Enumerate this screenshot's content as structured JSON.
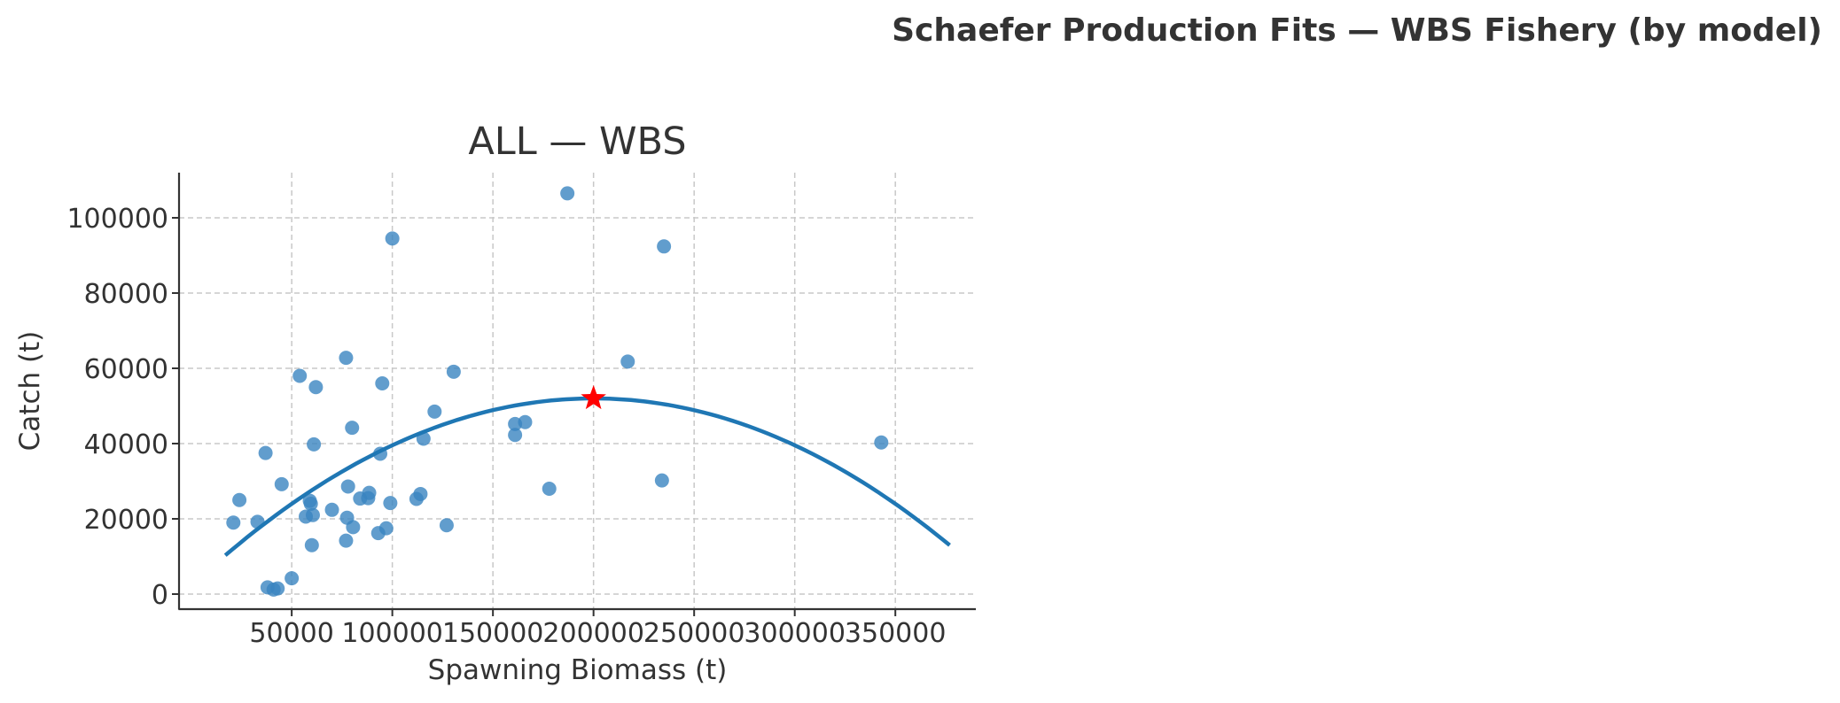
{
  "figure": {
    "title": "Schaefer Production Fits — WBS Fishery (by model)"
  },
  "chart_data": {
    "type": "scatter",
    "title": "ALL — WBS",
    "xlabel": "Spawning Biomass (t)",
    "ylabel": "Catch (t)",
    "xlim": [
      -6000,
      390000
    ],
    "ylim": [
      -4000,
      112000
    ],
    "xticks": [
      50000,
      100000,
      150000,
      200000,
      250000,
      300000,
      350000
    ],
    "yticks": [
      0,
      20000,
      40000,
      60000,
      80000,
      100000
    ],
    "grid": true,
    "colors": {
      "points": "#3a85c0",
      "curve": "#1f77b4",
      "msy_star": "#ff0000",
      "grid": "#c8c8c8",
      "axis": "#333333"
    },
    "series": [
      {
        "kind": "points",
        "points": [
          [
            21000,
            19000
          ],
          [
            24000,
            25000
          ],
          [
            33000,
            19200
          ],
          [
            37000,
            37500
          ],
          [
            38000,
            1800
          ],
          [
            41000,
            1200
          ],
          [
            43000,
            1500
          ],
          [
            45000,
            29200
          ],
          [
            50000,
            4200
          ],
          [
            54000,
            58000
          ],
          [
            57000,
            20600
          ],
          [
            59000,
            24800
          ],
          [
            59500,
            24000
          ],
          [
            60000,
            13000
          ],
          [
            60500,
            21000
          ],
          [
            61000,
            39800
          ],
          [
            62000,
            55000
          ],
          [
            70000,
            22400
          ],
          [
            77000,
            14200
          ],
          [
            77000,
            62800
          ],
          [
            77500,
            20300
          ],
          [
            78000,
            28600
          ],
          [
            80000,
            44200
          ],
          [
            80500,
            17800
          ],
          [
            84000,
            25400
          ],
          [
            88000,
            25500
          ],
          [
            88500,
            26900
          ],
          [
            93000,
            16200
          ],
          [
            94000,
            37300
          ],
          [
            95000,
            56000
          ],
          [
            97000,
            17500
          ],
          [
            99000,
            24200
          ],
          [
            100000,
            94500
          ],
          [
            112000,
            25300
          ],
          [
            114000,
            26600
          ],
          [
            115500,
            41300
          ],
          [
            121000,
            48500
          ],
          [
            127000,
            18300
          ],
          [
            130500,
            59100
          ],
          [
            161000,
            45200
          ],
          [
            161000,
            42300
          ],
          [
            166000,
            45700
          ],
          [
            178000,
            28000
          ],
          [
            187000,
            106500
          ],
          [
            217000,
            61800
          ],
          [
            234000,
            30200
          ],
          [
            235000,
            92400
          ],
          [
            343000,
            40300
          ]
        ]
      },
      {
        "kind": "curve",
        "model": "Schaefer",
        "curve_points": [
          [
            17000,
            10300
          ],
          [
            50000,
            24300
          ],
          [
            100000,
            39800
          ],
          [
            150000,
            48900
          ],
          [
            200000,
            52000
          ],
          [
            250000,
            48900
          ],
          [
            300000,
            39800
          ],
          [
            350000,
            24300
          ],
          [
            377000,
            11000
          ]
        ]
      },
      {
        "kind": "msy",
        "marker": "star",
        "point": [
          200000,
          52000
        ]
      }
    ]
  }
}
